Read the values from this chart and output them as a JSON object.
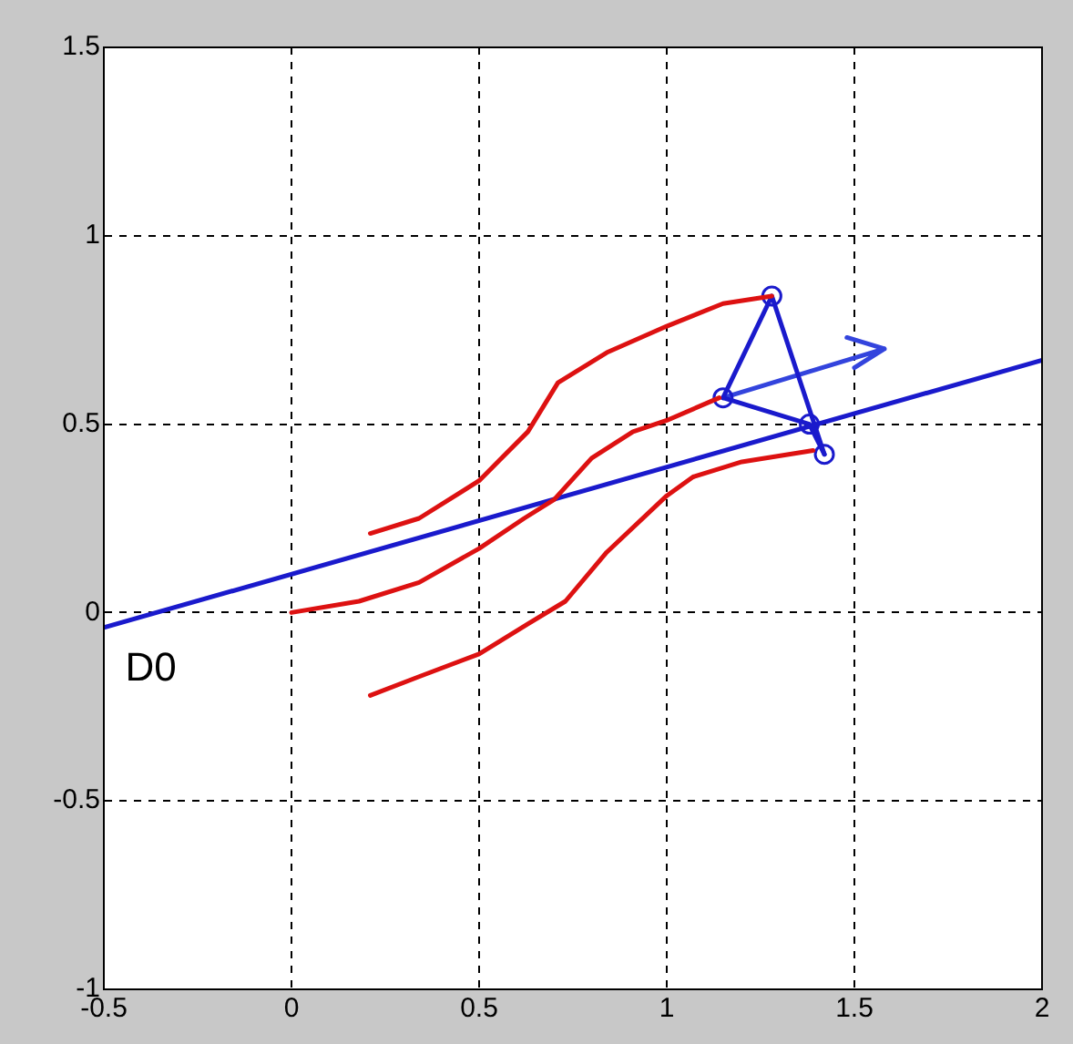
{
  "chart_data": {
    "type": "line",
    "xlim": [
      -0.5,
      2
    ],
    "xticks": [
      -0.5,
      0,
      0.5,
      1,
      1.5,
      2
    ],
    "ylim": [
      -1,
      1.5
    ],
    "yticks": [
      -1,
      -0.5,
      0,
      0.5,
      1,
      1.5
    ],
    "grid": true,
    "legend": false,
    "line_style": "solid",
    "series": [
      {
        "type": "line",
        "color": "#dd1111",
        "x": [
          0.21,
          0.34,
          0.5,
          0.63,
          0.71,
          0.84,
          1.0,
          1.15,
          1.28
        ],
        "values": [
          0.21,
          0.25,
          0.35,
          0.48,
          0.61,
          0.69,
          0.76,
          0.82,
          0.84
        ]
      },
      {
        "type": "line",
        "color": "#dd1111",
        "x": [
          0,
          0.18,
          0.34,
          0.5,
          0.62,
          0.7,
          0.8,
          0.91,
          1.0,
          1.14
        ],
        "values": [
          0,
          0.03,
          0.08,
          0.17,
          0.25,
          0.3,
          0.41,
          0.48,
          0.51,
          0.57
        ]
      },
      {
        "type": "line",
        "color": "#dd1111",
        "x": [
          0.21,
          0.34,
          0.5,
          0.63,
          0.73,
          0.84,
          1.0,
          1.07,
          1.2,
          1.39
        ],
        "values": [
          -0.22,
          -0.17,
          -0.11,
          -0.03,
          0.03,
          0.16,
          0.31,
          0.36,
          0.4,
          0.43
        ]
      },
      {
        "type": "line",
        "color": "#1a1acc",
        "x": [
          -0.5,
          2
        ],
        "values": [
          -0.04,
          0.67
        ]
      },
      {
        "type": "line",
        "color": "#1a1acc",
        "x": [
          1.15,
          1.28,
          1.42
        ],
        "values": [
          0.57,
          0.84,
          0.42
        ]
      },
      {
        "type": "line",
        "color": "#1a1acc",
        "x": [
          1.15,
          1.38,
          1.42
        ],
        "values": [
          0.57,
          0.5,
          0.42
        ]
      },
      {
        "type": "scatter",
        "color": "#1a1acc",
        "marker": "circle",
        "x": [
          1.15,
          1.28,
          1.38,
          1.42
        ],
        "values": [
          0.57,
          0.84,
          0.5,
          0.42
        ]
      },
      {
        "type": "line",
        "color": "#3344dd",
        "x": [
          1.15,
          1.58,
          1.48,
          null,
          1.58,
          1.5
        ],
        "values": [
          0.57,
          0.7,
          0.73,
          null,
          0.7,
          0.65
        ]
      }
    ],
    "annotations": [
      "D0"
    ]
  }
}
